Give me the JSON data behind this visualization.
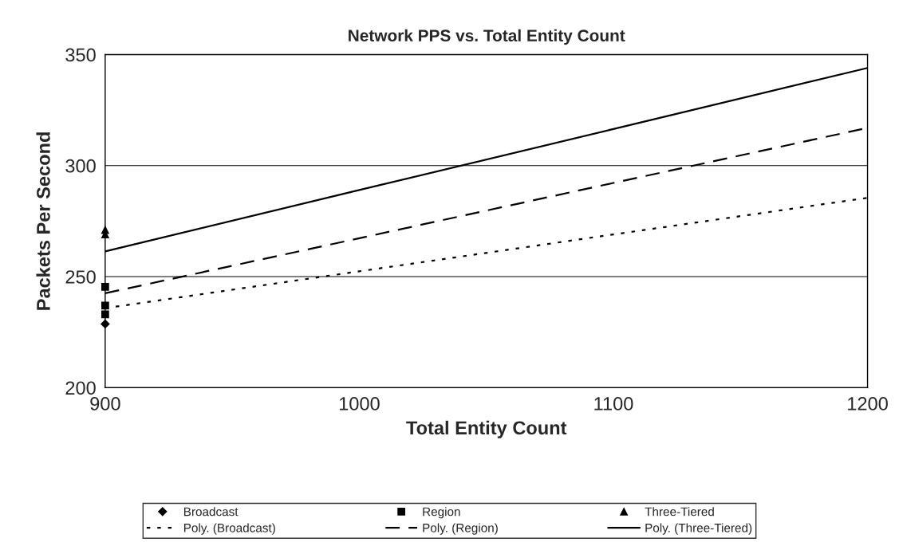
{
  "chart_data": {
    "type": "scatter",
    "title": "Network PPS vs. Total Entity Count",
    "xlabel": "Total Entity Count",
    "ylabel": "Packets Per Second",
    "xlim": [
      900,
      1200
    ],
    "xticks": [
      900,
      1000,
      1100,
      1200
    ],
    "ylim": [
      200,
      350
    ],
    "yticks": [
      200,
      250,
      300,
      350
    ],
    "grid": "y",
    "legend": "bottom",
    "series": [
      {
        "name": "Broadcast",
        "marker": "diamond",
        "color": "#000000",
        "x": [
          900
        ],
        "values": [
          228.7
        ]
      },
      {
        "name": "Poly. (Broadcast)",
        "type": "line",
        "line_style": "dotted",
        "marker": "none",
        "color": "#000000",
        "x": [
          900,
          1000,
          1100,
          1200
        ],
        "values": [
          235.8,
          252.4,
          269,
          285.5
        ]
      },
      {
        "name": "Region",
        "marker": "square",
        "color": "#000000",
        "x": [
          900,
          900,
          900
        ],
        "values": [
          245.4,
          237,
          233
        ]
      },
      {
        "name": "Poly. (Region)",
        "type": "line",
        "line_style": "dashed",
        "marker": "none",
        "color": "#000000",
        "x": [
          900,
          1000,
          1100,
          1200
        ],
        "values": [
          242.5,
          267.3,
          292.2,
          317
        ]
      },
      {
        "name": "Three-Tiered",
        "marker": "triangle",
        "color": "#000000",
        "x": [
          900,
          900
        ],
        "values": [
          271,
          269
        ]
      },
      {
        "name": "Poly. (Three-Tiered)",
        "type": "line",
        "line_style": "solid",
        "marker": "none",
        "color": "#000000",
        "x": [
          900,
          1000,
          1100,
          1200
        ],
        "values": [
          261.4,
          289,
          316.5,
          344
        ]
      }
    ]
  }
}
